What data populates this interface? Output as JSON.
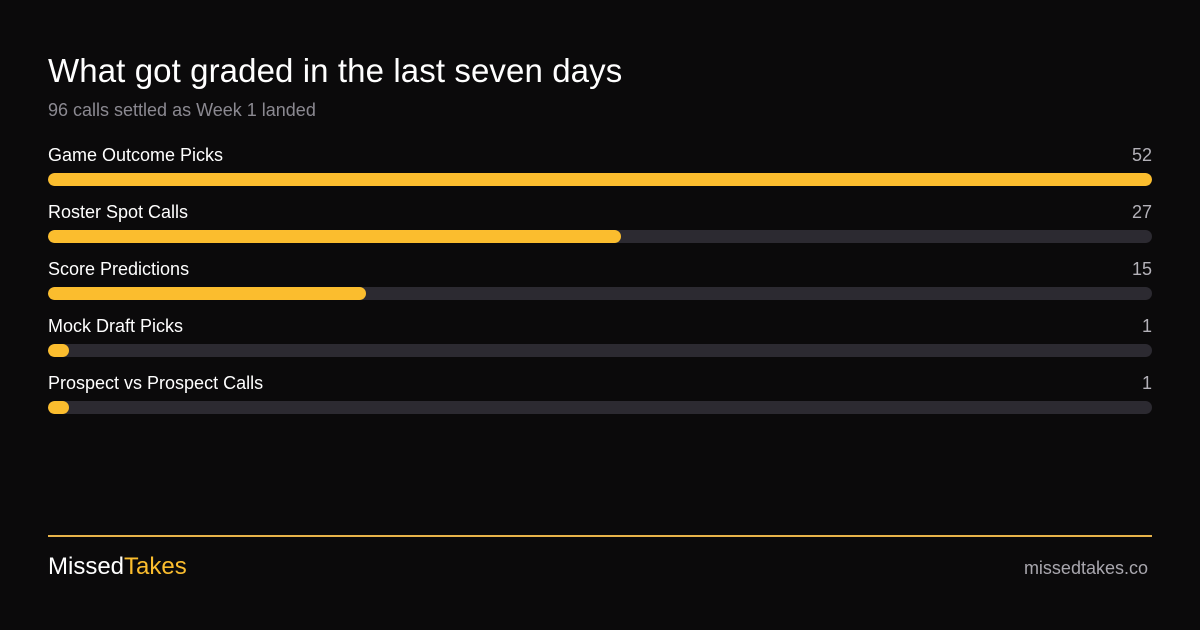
{
  "header": {
    "title": "What got graded in the last seven days",
    "subtitle": "96 calls settled as Week 1 landed"
  },
  "colors": {
    "background": "#0b0a0b",
    "bar_fill": "#fbbd2e",
    "bar_track": "#2c2a31",
    "divider": "#e8b34a"
  },
  "chart_data": {
    "type": "bar",
    "orientation": "horizontal",
    "title": "What got graded in the last seven days",
    "subtitle": "96 calls settled as Week 1 landed",
    "categories": [
      "Game Outcome Picks",
      "Roster Spot Calls",
      "Score Predictions",
      "Mock Draft Picks",
      "Prospect vs Prospect Calls"
    ],
    "values": [
      52,
      27,
      15,
      1,
      1
    ],
    "xlim": [
      0,
      52
    ],
    "grid": false,
    "legend": "none"
  },
  "footer": {
    "brand_part1": "Missed",
    "brand_part2": "Takes",
    "site": "missedtakes.co"
  }
}
